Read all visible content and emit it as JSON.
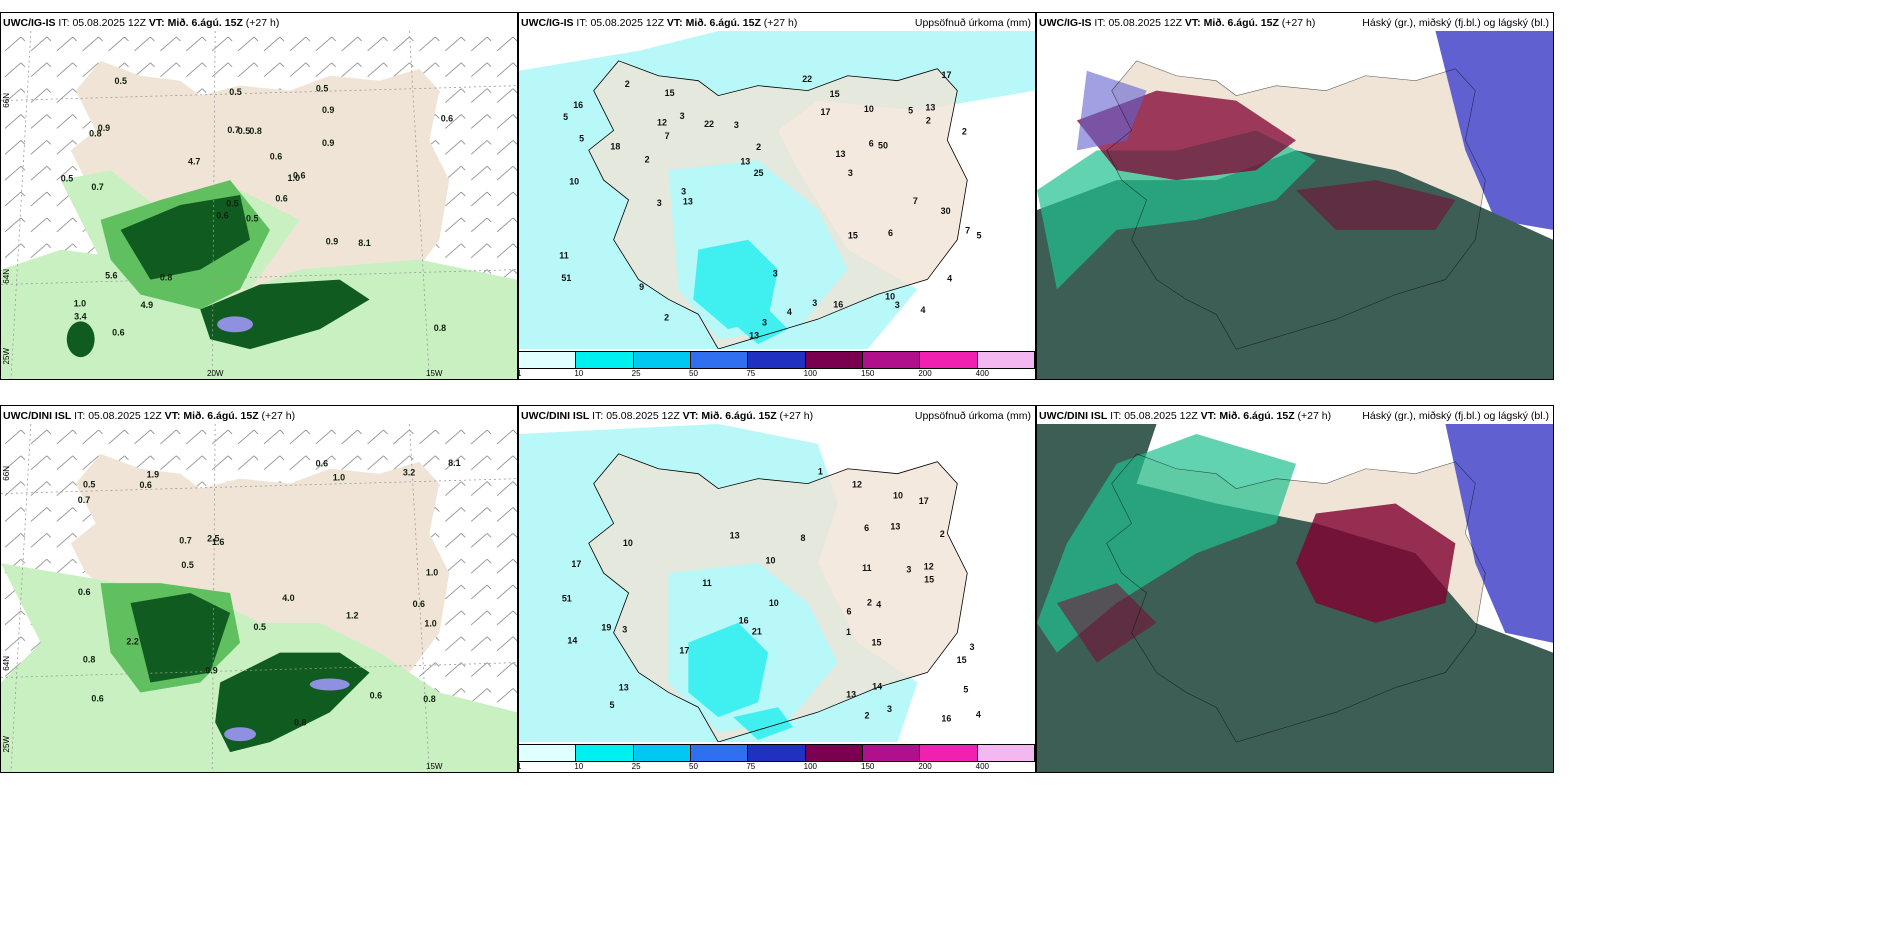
{
  "rows": [
    {
      "model": "UWC/IG-IS",
      "it_label": "IT:",
      "it_value": "05.08.2025 12Z",
      "vt_label": "VT:",
      "vt_value": "Mið. 6.ágú. 15Z",
      "lead": "(+27 h)"
    },
    {
      "model": "UWC/DINI ISL",
      "it_label": "IT:",
      "it_value": "05.08.2025 12Z",
      "vt_label": "VT:",
      "vt_value": "Mið. 6.ágú. 15Z",
      "lead": "(+27 h)"
    }
  ],
  "precip_title": "Uppsöfnuð úrkoma (mm)",
  "cloud_title": "Háský (gr.), miðský (fj.bl.) og lágský (bl.)",
  "axis": {
    "lat_66": "66N",
    "lat_64": "64N",
    "lon_25": "25W",
    "lon_20": "20W",
    "lon_15": "15W"
  },
  "legend": {
    "ticks": [
      "1",
      "10",
      "25",
      "50",
      "75",
      "100",
      "150",
      "200",
      "400"
    ],
    "colors": [
      "#e0ffff",
      "#00f0f0",
      "#00c8f0",
      "#3070f0",
      "#2030c0",
      "#7a0050",
      "#b0108c",
      "#f020b0",
      "#f4b8f0"
    ]
  },
  "colors": {
    "land": "#f0e4d6",
    "precip_light": "#b8f8f8",
    "precip_mid": "#40f0f0",
    "rain_light": "#c8f0c0",
    "rain_mid": "#60c060",
    "rain_dark": "#105c20",
    "cloud_low": "#3d5e55",
    "cloud_mid": "#20c090",
    "cloud_high": "#800030",
    "cloud_blue": "#6060d0"
  },
  "rain_labels_top": [
    "0.5",
    "0.8",
    "0.5",
    "1.0",
    "1.0",
    "0.8",
    "0.5",
    "0.8",
    "0.9",
    "0.6",
    "0.5",
    "0.8",
    "0.7",
    "0.6",
    "0.6",
    "0.9",
    "0.6",
    "0.7",
    "0.6",
    "5.6",
    "4.7",
    "3.4",
    "4.9",
    "0.5",
    "0.6",
    "8.1",
    "0.9",
    "0.5",
    "0.5",
    "0.9"
  ],
  "rain_labels_bottom": [
    "1.2",
    "0.6",
    "0.6",
    "1.9",
    "1.6",
    "0.6",
    "0.8",
    "1.0",
    "0.7",
    "0.8",
    "0.7",
    "0.6",
    "0.5",
    "0.8",
    "0.9",
    "1.0",
    "0.5",
    "4.0",
    "2.5",
    "2.2",
    "8.1",
    "3.2",
    "0.5",
    "1.0",
    "0.6",
    "0.6"
  ],
  "precip_labels_top": [
    "5",
    "7",
    "3",
    "3",
    "5",
    "13",
    "15",
    "13",
    "13",
    "5",
    "7",
    "3",
    "6",
    "9",
    "10",
    "2",
    "3",
    "3",
    "4",
    "3",
    "3",
    "30",
    "25",
    "3",
    "10",
    "2",
    "2",
    "15",
    "2",
    "3",
    "11",
    "16",
    "17",
    "18",
    "16",
    "15",
    "22",
    "17",
    "22",
    "51",
    "50",
    "12",
    "13",
    "10",
    "4",
    "2",
    "5",
    "7",
    "4",
    "6",
    "2",
    "13"
  ],
  "precip_labels_bottom": [
    "1",
    "3",
    "3",
    "15",
    "13",
    "13",
    "12",
    "10",
    "5",
    "3",
    "2",
    "6",
    "14",
    "15",
    "17",
    "16",
    "17",
    "19",
    "10",
    "13",
    "21",
    "51",
    "11",
    "12",
    "15",
    "13",
    "10",
    "6",
    "4",
    "3",
    "2",
    "1",
    "17",
    "14",
    "11",
    "5",
    "8",
    "10",
    "4",
    "2",
    "16"
  ]
}
